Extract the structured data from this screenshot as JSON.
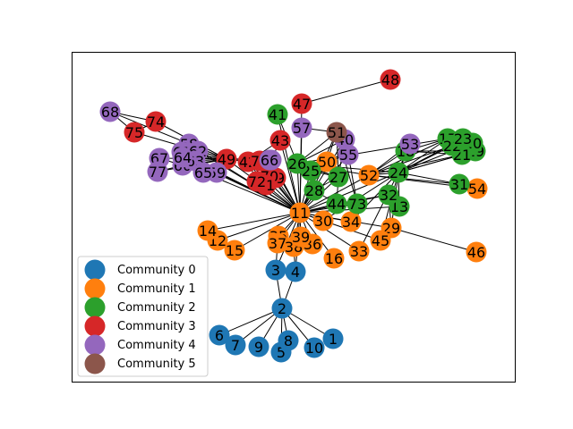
{
  "communities": [
    {
      "id": 0,
      "label": "Community 0",
      "color": "#1f77b4"
    },
    {
      "id": 1,
      "label": "Community 1",
      "color": "#ff7f0e"
    },
    {
      "id": 2,
      "label": "Community 2",
      "color": "#2ca02c"
    },
    {
      "id": 3,
      "label": "Community 3",
      "color": "#d62728"
    },
    {
      "id": 4,
      "label": "Community 4",
      "color": "#9467bd"
    },
    {
      "id": 5,
      "label": "Community 5",
      "color": "#8c564b"
    }
  ],
  "nodes": [
    {
      "id": "1",
      "community": 0
    },
    {
      "id": "2",
      "community": 0
    },
    {
      "id": "3",
      "community": 0
    },
    {
      "id": "4",
      "community": 0
    },
    {
      "id": "5",
      "community": 0
    },
    {
      "id": "6",
      "community": 0
    },
    {
      "id": "7",
      "community": 0
    },
    {
      "id": "8",
      "community": 0
    },
    {
      "id": "9",
      "community": 0
    },
    {
      "id": "10",
      "community": 0
    },
    {
      "id": "11",
      "community": 1
    },
    {
      "id": "12",
      "community": 1
    },
    {
      "id": "14",
      "community": 1
    },
    {
      "id": "15",
      "community": 1
    },
    {
      "id": "16",
      "community": 1
    },
    {
      "id": "29",
      "community": 1
    },
    {
      "id": "30",
      "community": 1
    },
    {
      "id": "33",
      "community": 1
    },
    {
      "id": "34",
      "community": 1
    },
    {
      "id": "35",
      "community": 1
    },
    {
      "id": "36",
      "community": 1
    },
    {
      "id": "37",
      "community": 1
    },
    {
      "id": "38",
      "community": 1
    },
    {
      "id": "39",
      "community": 1
    },
    {
      "id": "45",
      "community": 1
    },
    {
      "id": "46",
      "community": 1
    },
    {
      "id": "50",
      "community": 1
    },
    {
      "id": "52",
      "community": 1
    },
    {
      "id": "54",
      "community": 1
    },
    {
      "id": "13",
      "community": 2
    },
    {
      "id": "17",
      "community": 2
    },
    {
      "id": "18",
      "community": 2
    },
    {
      "id": "19",
      "community": 2
    },
    {
      "id": "20",
      "community": 2
    },
    {
      "id": "21",
      "community": 2
    },
    {
      "id": "22",
      "community": 2
    },
    {
      "id": "23",
      "community": 2
    },
    {
      "id": "24",
      "community": 2
    },
    {
      "id": "25",
      "community": 2
    },
    {
      "id": "26",
      "community": 2
    },
    {
      "id": "27",
      "community": 2
    },
    {
      "id": "28",
      "community": 2
    },
    {
      "id": "31",
      "community": 2
    },
    {
      "id": "32",
      "community": 2
    },
    {
      "id": "41",
      "community": 2
    },
    {
      "id": "44",
      "community": 2
    },
    {
      "id": "73",
      "community": 2
    },
    {
      "id": "42",
      "community": 3
    },
    {
      "id": "43",
      "community": 3
    },
    {
      "id": "47",
      "community": 3
    },
    {
      "id": "48",
      "community": 3
    },
    {
      "id": "49",
      "community": 3
    },
    {
      "id": "69",
      "community": 3
    },
    {
      "id": "70",
      "community": 3
    },
    {
      "id": "71",
      "community": 3
    },
    {
      "id": "72",
      "community": 3
    },
    {
      "id": "74",
      "community": 3
    },
    {
      "id": "75",
      "community": 3
    },
    {
      "id": "76",
      "community": 3
    },
    {
      "id": "40",
      "community": 4
    },
    {
      "id": "53",
      "community": 4
    },
    {
      "id": "55",
      "community": 4
    },
    {
      "id": "56",
      "community": 4
    },
    {
      "id": "57",
      "community": 4
    },
    {
      "id": "58",
      "community": 4
    },
    {
      "id": "59",
      "community": 4
    },
    {
      "id": "60",
      "community": 4
    },
    {
      "id": "61",
      "community": 4
    },
    {
      "id": "62",
      "community": 4
    },
    {
      "id": "63",
      "community": 4
    },
    {
      "id": "64",
      "community": 4
    },
    {
      "id": "65",
      "community": 4
    },
    {
      "id": "66",
      "community": 4
    },
    {
      "id": "67",
      "community": 4
    },
    {
      "id": "68",
      "community": 4
    },
    {
      "id": "77",
      "community": 4
    },
    {
      "id": "51",
      "community": 5
    }
  ],
  "edges": [
    [
      "2",
      "1"
    ],
    [
      "2",
      "3"
    ],
    [
      "2",
      "4"
    ],
    [
      "2",
      "5"
    ],
    [
      "2",
      "6"
    ],
    [
      "2",
      "7"
    ],
    [
      "2",
      "8"
    ],
    [
      "2",
      "9"
    ],
    [
      "2",
      "10"
    ],
    [
      "3",
      "11"
    ],
    [
      "4",
      "11"
    ],
    [
      "3",
      "37"
    ],
    [
      "4",
      "38"
    ],
    [
      "11",
      "12"
    ],
    [
      "11",
      "14"
    ],
    [
      "11",
      "15"
    ],
    [
      "11",
      "16"
    ],
    [
      "11",
      "29"
    ],
    [
      "11",
      "30"
    ],
    [
      "11",
      "33"
    ],
    [
      "11",
      "34"
    ],
    [
      "11",
      "35"
    ],
    [
      "11",
      "36"
    ],
    [
      "11",
      "37"
    ],
    [
      "11",
      "38"
    ],
    [
      "11",
      "39"
    ],
    [
      "11",
      "45"
    ],
    [
      "11",
      "50"
    ],
    [
      "11",
      "52"
    ],
    [
      "11",
      "13"
    ],
    [
      "11",
      "24"
    ],
    [
      "11",
      "25"
    ],
    [
      "11",
      "26"
    ],
    [
      "11",
      "27"
    ],
    [
      "11",
      "28"
    ],
    [
      "11",
      "32"
    ],
    [
      "11",
      "44"
    ],
    [
      "11",
      "73"
    ],
    [
      "11",
      "41"
    ],
    [
      "11",
      "42"
    ],
    [
      "11",
      "43"
    ],
    [
      "11",
      "47"
    ],
    [
      "11",
      "49"
    ],
    [
      "11",
      "69"
    ],
    [
      "11",
      "70"
    ],
    [
      "11",
      "71"
    ],
    [
      "11",
      "72"
    ],
    [
      "11",
      "76"
    ],
    [
      "11",
      "40"
    ],
    [
      "11",
      "55"
    ],
    [
      "11",
      "56"
    ],
    [
      "11",
      "57"
    ],
    [
      "11",
      "51"
    ],
    [
      "11",
      "58"
    ],
    [
      "11",
      "59"
    ],
    [
      "11",
      "62"
    ],
    [
      "11",
      "63"
    ],
    [
      "11",
      "64"
    ],
    [
      "11",
      "65"
    ],
    [
      "11",
      "66"
    ],
    [
      "29",
      "46"
    ],
    [
      "29",
      "24"
    ],
    [
      "29",
      "32"
    ],
    [
      "30",
      "24"
    ],
    [
      "34",
      "24"
    ],
    [
      "33",
      "24"
    ],
    [
      "45",
      "24"
    ],
    [
      "47",
      "48"
    ],
    [
      "41",
      "26"
    ],
    [
      "52",
      "24"
    ],
    [
      "52",
      "18"
    ],
    [
      "52",
      "17"
    ],
    [
      "52",
      "21"
    ],
    [
      "52",
      "22"
    ],
    [
      "52",
      "54"
    ],
    [
      "52",
      "31"
    ],
    [
      "52",
      "53"
    ],
    [
      "24",
      "17"
    ],
    [
      "24",
      "18"
    ],
    [
      "24",
      "19"
    ],
    [
      "24",
      "20"
    ],
    [
      "24",
      "21"
    ],
    [
      "24",
      "22"
    ],
    [
      "24",
      "23"
    ],
    [
      "24",
      "31"
    ],
    [
      "24",
      "13"
    ],
    [
      "24",
      "53"
    ],
    [
      "13",
      "32"
    ],
    [
      "18",
      "17"
    ],
    [
      "18",
      "19"
    ],
    [
      "18",
      "21"
    ],
    [
      "26",
      "50"
    ],
    [
      "26",
      "25"
    ],
    [
      "26",
      "27"
    ],
    [
      "26",
      "51"
    ],
    [
      "26",
      "40"
    ],
    [
      "26",
      "24"
    ],
    [
      "26",
      "52"
    ],
    [
      "26",
      "17"
    ],
    [
      "27",
      "51"
    ],
    [
      "27",
      "40"
    ],
    [
      "73",
      "51"
    ],
    [
      "73",
      "55"
    ],
    [
      "44",
      "27"
    ],
    [
      "49",
      "42"
    ],
    [
      "49",
      "74"
    ],
    [
      "49",
      "75"
    ],
    [
      "49",
      "58"
    ],
    [
      "49",
      "61"
    ],
    [
      "49",
      "62"
    ],
    [
      "49",
      "63"
    ],
    [
      "49",
      "64"
    ],
    [
      "49",
      "65"
    ],
    [
      "49",
      "66"
    ],
    [
      "49",
      "67"
    ],
    [
      "49",
      "77"
    ],
    [
      "49",
      "59"
    ],
    [
      "49",
      "60"
    ],
    [
      "74",
      "68"
    ],
    [
      "74",
      "75"
    ],
    [
      "75",
      "68"
    ],
    [
      "68",
      "49"
    ],
    [
      "58",
      "62"
    ],
    [
      "58",
      "63"
    ],
    [
      "58",
      "64"
    ],
    [
      "61",
      "62"
    ],
    [
      "67",
      "60"
    ],
    [
      "77",
      "60"
    ],
    [
      "65",
      "59"
    ],
    [
      "64",
      "66"
    ],
    [
      "42",
      "72"
    ],
    [
      "42",
      "71"
    ],
    [
      "42",
      "70"
    ],
    [
      "42",
      "69"
    ],
    [
      "42",
      "76"
    ],
    [
      "42",
      "56"
    ],
    [
      "70",
      "69"
    ],
    [
      "71",
      "69"
    ],
    [
      "72",
      "69"
    ],
    [
      "76",
      "56"
    ],
    [
      "43",
      "56"
    ],
    [
      "43",
      "42"
    ],
    [
      "51",
      "40"
    ],
    [
      "51",
      "55"
    ],
    [
      "51",
      "50"
    ],
    [
      "40",
      "55"
    ],
    [
      "55",
      "50"
    ],
    [
      "57",
      "51"
    ],
    [
      "28",
      "25"
    ],
    [
      "28",
      "44"
    ],
    [
      "32",
      "44"
    ],
    [
      "27",
      "25"
    ],
    [
      "27",
      "28"
    ]
  ],
  "legend": {
    "location": "lower left"
  }
}
